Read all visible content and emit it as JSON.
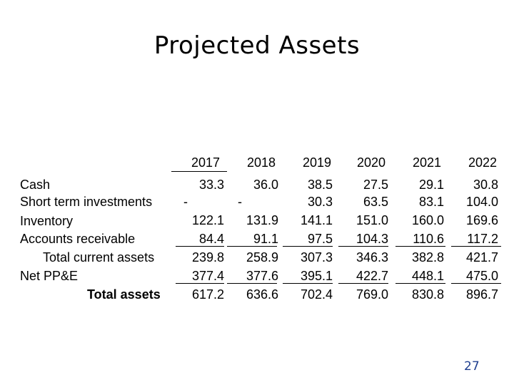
{
  "slide": {
    "title": "Projected Assets",
    "page_number": "27"
  },
  "table": {
    "years": [
      "2017",
      "2018",
      "2019",
      "2020",
      "2021",
      "2022"
    ],
    "rows": [
      {
        "label": "Cash",
        "values": [
          "33.3",
          "36.0",
          "38.5",
          "27.5",
          "29.1",
          "30.8"
        ]
      },
      {
        "label": "Short term investments",
        "values": [
          "-",
          "-",
          "30.3",
          "63.5",
          "83.1",
          "104.0"
        ]
      },
      {
        "label": "Inventory",
        "values": [
          "122.1",
          "131.9",
          "141.1",
          "151.0",
          "160.0",
          "169.6"
        ]
      },
      {
        "label": "Accounts receivable",
        "values": [
          "84.4",
          "91.1",
          "97.5",
          "104.3",
          "110.6",
          "117.2"
        ]
      },
      {
        "label": "Total current assets",
        "values": [
          "239.8",
          "258.9",
          "307.3",
          "346.3",
          "382.8",
          "421.7"
        ]
      },
      {
        "label": "Net PP&E",
        "values": [
          "377.4",
          "377.6",
          "395.1",
          "422.7",
          "448.1",
          "475.0"
        ]
      },
      {
        "label": "Total assets",
        "values": [
          "617.2",
          "636.6",
          "702.4",
          "769.0",
          "830.8",
          "896.7"
        ]
      }
    ]
  }
}
